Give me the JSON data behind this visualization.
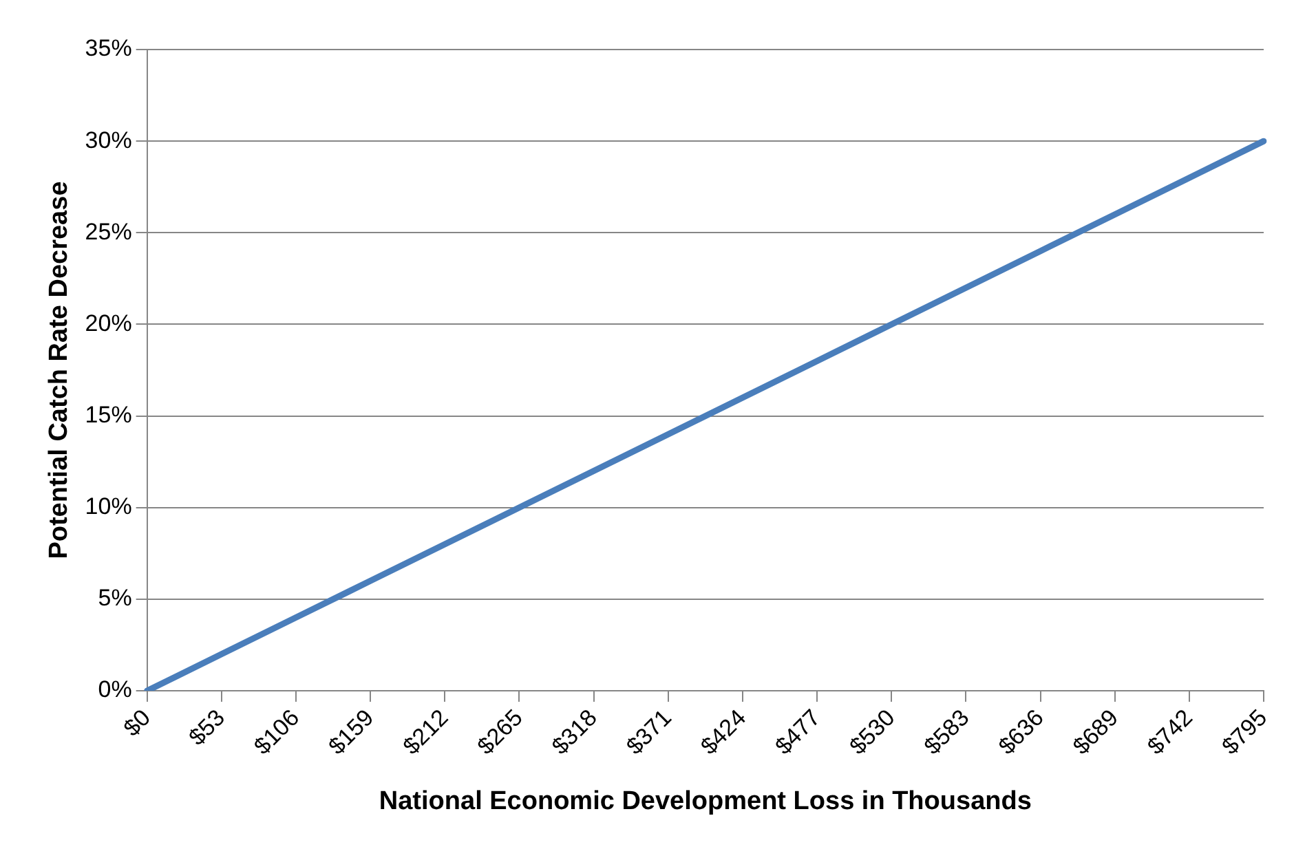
{
  "chart_data": {
    "type": "line",
    "xlabel": "National Economic Development Loss in Thousands",
    "ylabel": "Potential Catch Rate Decrease",
    "categories": [
      "$0",
      "$53",
      "$106",
      "$159",
      "$212",
      "$265",
      "$318",
      "$371",
      "$424",
      "$477",
      "$530",
      "$583",
      "$636",
      "$689",
      "$742",
      "$795"
    ],
    "series": [
      {
        "color": "#4a7ebb",
        "values": [
          0,
          2,
          4,
          6,
          8,
          10,
          12,
          14,
          16,
          18,
          20,
          22,
          24,
          26,
          28,
          30
        ]
      }
    ],
    "ylim": [
      0,
      35
    ],
    "yticks": [
      {
        "value": 0,
        "label": "0%"
      },
      {
        "value": 5,
        "label": "5%"
      },
      {
        "value": 10,
        "label": "10%"
      },
      {
        "value": 15,
        "label": "15%"
      },
      {
        "value": 20,
        "label": "20%"
      },
      {
        "value": 25,
        "label": "25%"
      },
      {
        "value": 30,
        "label": "30%"
      },
      {
        "value": 35,
        "label": "35%"
      }
    ],
    "grid": "y",
    "legend": false,
    "marker": "none",
    "line_style": "solid"
  }
}
